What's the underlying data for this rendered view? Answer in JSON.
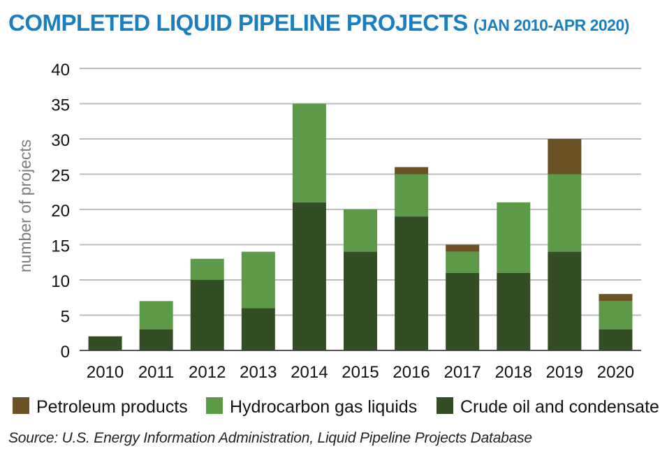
{
  "title": "COMPLETED LIQUID PIPELINE PROJECTS",
  "subtitle": "(JAN 2010-APR 2020)",
  "source": "Source: U.S. Energy Information Administration, Liquid Pipeline Projects Database",
  "chart_data": {
    "type": "bar",
    "stacked": true,
    "title": "COMPLETED LIQUID PIPELINE PROJECTS",
    "subtitle": "(JAN 2010-APR 2020)",
    "xlabel": "",
    "ylabel": "number of projects",
    "ylim": [
      0,
      40
    ],
    "yticks": [
      "0",
      "5",
      "10",
      "15",
      "20",
      "25",
      "30",
      "35",
      "40"
    ],
    "grid": true,
    "legend_position": "bottom",
    "categories": [
      "2010",
      "2011",
      "2012",
      "2013",
      "2014",
      "2015",
      "2016",
      "2017",
      "2018",
      "2019",
      "2020"
    ],
    "series": [
      {
        "name": "Crude oil and condensate",
        "color": "#334d25",
        "values": [
          2,
          3,
          10,
          6,
          21,
          14,
          19,
          11,
          11,
          14,
          3
        ]
      },
      {
        "name": "Hydrocarbon gas liquids",
        "color": "#5c9a48",
        "values": [
          0,
          4,
          3,
          8,
          14,
          6,
          6,
          3,
          10,
          11,
          4
        ]
      },
      {
        "name": "Petroleum products",
        "color": "#6b5326",
        "values": [
          0,
          0,
          0,
          0,
          0,
          0,
          1,
          1,
          0,
          5,
          1
        ]
      }
    ],
    "legend_order": [
      "Petroleum products",
      "Hydrocarbon gas liquids",
      "Crude oil and condensate"
    ]
  }
}
